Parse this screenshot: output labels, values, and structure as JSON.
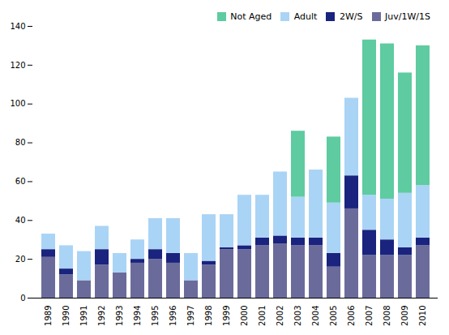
{
  "chart_data": {
    "type": "bar",
    "stacked": true,
    "categories": [
      "1989",
      "1990",
      "1991",
      "1992",
      "1993",
      "1994",
      "1995",
      "1996",
      "1997",
      "1998",
      "1999",
      "2000",
      "2001",
      "2002",
      "2003",
      "2004",
      "2005",
      "2006",
      "2007",
      "2008",
      "2009",
      "2010"
    ],
    "series": [
      {
        "name": "Juv/1W/1S",
        "color": "#6b6b9b",
        "values": [
          21,
          12,
          9,
          17,
          13,
          18,
          20,
          18,
          9,
          17,
          25,
          25,
          27,
          28,
          27,
          27,
          16,
          46,
          22,
          22,
          22,
          27
        ]
      },
      {
        "name": "2W/S",
        "color": "#1a237e",
        "values": [
          4,
          3,
          0,
          8,
          0,
          2,
          5,
          5,
          0,
          2,
          1,
          2,
          4,
          4,
          4,
          4,
          7,
          17,
          13,
          8,
          4,
          4
        ]
      },
      {
        "name": "Adult",
        "color": "#aad4f5",
        "values": [
          8,
          12,
          15,
          12,
          10,
          10,
          16,
          18,
          14,
          24,
          17,
          26,
          22,
          33,
          21,
          35,
          26,
          40,
          18,
          21,
          28,
          27
        ]
      },
      {
        "name": "Not Aged",
        "color": "#5ecba1",
        "values": [
          0,
          0,
          0,
          0,
          0,
          0,
          0,
          0,
          0,
          0,
          0,
          0,
          0,
          0,
          34,
          0,
          34,
          0,
          80,
          80,
          62,
          72
        ]
      }
    ],
    "ylim": [
      0,
      140
    ],
    "yticks": [
      0,
      20,
      40,
      60,
      80,
      100,
      120,
      140
    ],
    "legend": "upper right",
    "grid": false
  }
}
